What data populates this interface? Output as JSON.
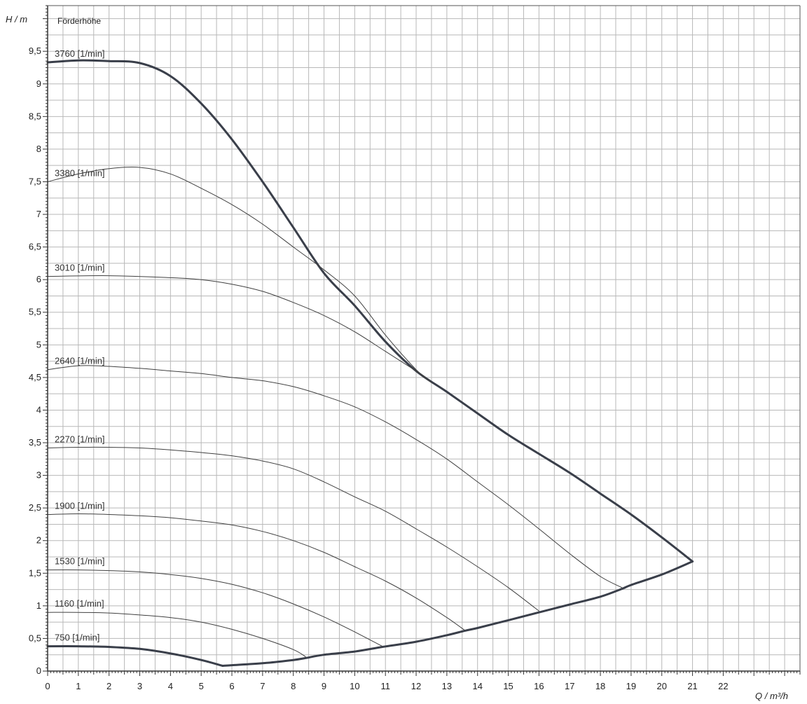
{
  "chart_data": {
    "type": "line",
    "title": "Förderhöhe",
    "xlabel": "Q / m³/h",
    "ylabel": "H / m",
    "xlim": [
      0,
      24.5
    ],
    "ylim": [
      0,
      10.2
    ],
    "grid": true,
    "x_ticks": [
      0,
      1,
      2,
      3,
      4,
      5,
      6,
      7,
      8,
      9,
      10,
      11,
      12,
      13,
      14,
      15,
      16,
      17,
      18,
      19,
      20,
      21,
      22
    ],
    "y_ticks": [
      0,
      0.5,
      1,
      1.5,
      2,
      2.5,
      3,
      3.5,
      4,
      4.5,
      5,
      5.5,
      6,
      6.5,
      7,
      7.5,
      8,
      8.5,
      9,
      9.5
    ],
    "x_tick_labels": [
      "0",
      "1",
      "2",
      "3",
      "4",
      "5",
      "6",
      "7",
      "8",
      "9",
      "10",
      "11",
      "12",
      "13",
      "14",
      "15",
      "16",
      "17",
      "18",
      "19",
      "20",
      "21",
      "22"
    ],
    "y_tick_labels": [
      "0",
      "0,5",
      "1",
      "1,5",
      "2",
      "2,5",
      "3",
      "3,5",
      "4",
      "4,5",
      "5",
      "5,5",
      "6",
      "6,5",
      "7",
      "7,5",
      "8",
      "8,5",
      "9",
      "9,5"
    ],
    "series": [
      {
        "name": "3760 [1/min]",
        "bold": true,
        "points": [
          [
            0,
            9.33
          ],
          [
            1,
            9.36
          ],
          [
            2,
            9.35
          ],
          [
            3,
            9.32
          ],
          [
            4,
            9.12
          ],
          [
            5,
            8.7
          ],
          [
            6,
            8.15
          ],
          [
            7,
            7.5
          ],
          [
            8,
            6.8
          ],
          [
            9,
            6.1
          ],
          [
            10,
            5.6
          ],
          [
            11,
            5.05
          ],
          [
            12,
            4.6
          ],
          [
            13,
            4.28
          ],
          [
            14,
            3.95
          ],
          [
            15,
            3.62
          ],
          [
            16,
            3.33
          ],
          [
            17,
            3.04
          ],
          [
            18,
            2.72
          ],
          [
            19,
            2.4
          ],
          [
            20,
            2.05
          ],
          [
            21,
            1.68
          ]
        ]
      },
      {
        "name": "3380 [1/min]",
        "bold": false,
        "points": [
          [
            0,
            7.5
          ],
          [
            1,
            7.62
          ],
          [
            2,
            7.7
          ],
          [
            3,
            7.72
          ],
          [
            4,
            7.62
          ],
          [
            5,
            7.4
          ],
          [
            6,
            7.15
          ],
          [
            7,
            6.85
          ],
          [
            8,
            6.5
          ],
          [
            9,
            6.15
          ],
          [
            10,
            5.75
          ],
          [
            11,
            5.15
          ],
          [
            12,
            4.62
          ],
          [
            12.5,
            4.42
          ]
        ]
      },
      {
        "name": "3010 [1/min]",
        "bold": false,
        "points": [
          [
            0,
            6.05
          ],
          [
            2,
            6.06
          ],
          [
            4,
            6.03
          ],
          [
            5,
            6.0
          ],
          [
            6,
            5.93
          ],
          [
            7,
            5.82
          ],
          [
            8,
            5.65
          ],
          [
            9,
            5.45
          ],
          [
            10,
            5.2
          ],
          [
            11,
            4.9
          ],
          [
            12,
            4.6
          ],
          [
            12.3,
            4.5
          ]
        ]
      },
      {
        "name": "2640 [1/min]",
        "bold": false,
        "points": [
          [
            0,
            4.62
          ],
          [
            1,
            4.68
          ],
          [
            2,
            4.67
          ],
          [
            3,
            4.64
          ],
          [
            4,
            4.6
          ],
          [
            5,
            4.56
          ],
          [
            6,
            4.5
          ],
          [
            7,
            4.45
          ],
          [
            8,
            4.36
          ],
          [
            9,
            4.22
          ],
          [
            10,
            4.05
          ],
          [
            11,
            3.82
          ],
          [
            12,
            3.55
          ],
          [
            13,
            3.25
          ],
          [
            14,
            2.9
          ],
          [
            15,
            2.55
          ],
          [
            16,
            2.18
          ],
          [
            17,
            1.8
          ],
          [
            18,
            1.45
          ],
          [
            18.7,
            1.28
          ]
        ]
      },
      {
        "name": "2270 [1/min]",
        "bold": false,
        "points": [
          [
            0,
            3.42
          ],
          [
            1,
            3.43
          ],
          [
            2,
            3.43
          ],
          [
            3,
            3.42
          ],
          [
            4,
            3.39
          ],
          [
            5,
            3.35
          ],
          [
            6,
            3.3
          ],
          [
            7,
            3.22
          ],
          [
            8,
            3.1
          ],
          [
            9,
            2.9
          ],
          [
            10,
            2.67
          ],
          [
            11,
            2.45
          ],
          [
            12,
            2.18
          ],
          [
            13,
            1.9
          ],
          [
            14,
            1.6
          ],
          [
            15,
            1.28
          ],
          [
            16,
            0.92
          ]
        ]
      },
      {
        "name": "1900 [1/min]",
        "bold": false,
        "points": [
          [
            0,
            2.4
          ],
          [
            1,
            2.41
          ],
          [
            2,
            2.4
          ],
          [
            3,
            2.38
          ],
          [
            4,
            2.35
          ],
          [
            5,
            2.3
          ],
          [
            6,
            2.24
          ],
          [
            7,
            2.14
          ],
          [
            8,
            2.0
          ],
          [
            9,
            1.82
          ],
          [
            10,
            1.6
          ],
          [
            11,
            1.38
          ],
          [
            12,
            1.12
          ],
          [
            13,
            0.82
          ],
          [
            13.6,
            0.62
          ]
        ]
      },
      {
        "name": "1530 [1/min]",
        "bold": false,
        "points": [
          [
            0,
            1.55
          ],
          [
            1,
            1.55
          ],
          [
            2,
            1.54
          ],
          [
            3,
            1.52
          ],
          [
            4,
            1.48
          ],
          [
            5,
            1.42
          ],
          [
            6,
            1.33
          ],
          [
            7,
            1.2
          ],
          [
            8,
            1.03
          ],
          [
            9,
            0.83
          ],
          [
            10,
            0.6
          ],
          [
            10.9,
            0.38
          ]
        ]
      },
      {
        "name": "1160 [1/min]",
        "bold": false,
        "points": [
          [
            0,
            0.9
          ],
          [
            1,
            0.9
          ],
          [
            2,
            0.89
          ],
          [
            3,
            0.86
          ],
          [
            4,
            0.82
          ],
          [
            5,
            0.75
          ],
          [
            6,
            0.64
          ],
          [
            7,
            0.5
          ],
          [
            8,
            0.33
          ],
          [
            8.4,
            0.22
          ]
        ]
      },
      {
        "name": "750 [1/min]",
        "bold": true,
        "points": [
          [
            0,
            0.38
          ],
          [
            1,
            0.38
          ],
          [
            2,
            0.37
          ],
          [
            3,
            0.34
          ],
          [
            4,
            0.27
          ],
          [
            5,
            0.17
          ],
          [
            5.7,
            0.08
          ]
        ]
      },
      {
        "name": "",
        "bold": true,
        "points": [
          [
            5.7,
            0.08
          ],
          [
            6,
            0.09
          ],
          [
            7,
            0.12
          ],
          [
            8,
            0.17
          ],
          [
            8.4,
            0.2
          ],
          [
            9,
            0.25
          ],
          [
            10,
            0.3
          ],
          [
            10.9,
            0.37
          ],
          [
            12,
            0.45
          ],
          [
            13,
            0.55
          ],
          [
            13.6,
            0.62
          ],
          [
            14,
            0.66
          ],
          [
            15,
            0.78
          ],
          [
            16,
            0.9
          ],
          [
            17,
            1.02
          ],
          [
            18,
            1.14
          ],
          [
            18.7,
            1.26
          ],
          [
            19,
            1.32
          ],
          [
            20,
            1.48
          ],
          [
            21,
            1.68
          ]
        ]
      }
    ]
  }
}
